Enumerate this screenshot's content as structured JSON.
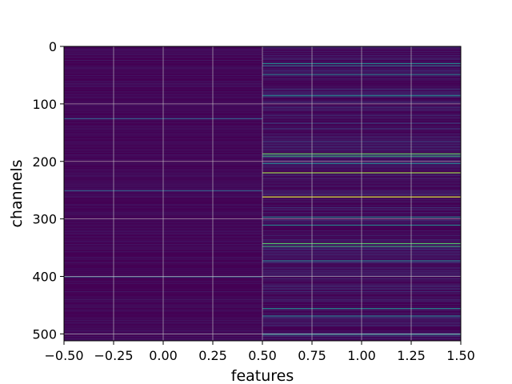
{
  "chart_data": {
    "type": "heatmap",
    "title": "",
    "xlabel": "features",
    "ylabel": "channels",
    "xlim": [
      -0.5,
      1.5
    ],
    "ylim": [
      512,
      0
    ],
    "grid": true,
    "colormap": "viridis",
    "columns": [
      0,
      1
    ],
    "xticks": [
      "−0.50",
      "−0.25",
      "0.00",
      "0.25",
      "0.50",
      "0.75",
      "1.00",
      "1.25",
      "1.50"
    ],
    "xtick_values": [
      -0.5,
      -0.25,
      0,
      0.25,
      0.5,
      0.75,
      1.0,
      1.25,
      1.5
    ],
    "yticks": [
      "0",
      "100",
      "200",
      "300",
      "400",
      "500"
    ],
    "ytick_values": [
      0,
      100,
      200,
      300,
      400,
      500
    ],
    "bright_rows": [
      {
        "channel": 29,
        "column": 1,
        "level": 0.45
      },
      {
        "channel": 33,
        "column": 1,
        "level": 0.35
      },
      {
        "channel": 48,
        "column": 1,
        "level": 0.4
      },
      {
        "channel": 85,
        "column": 1,
        "level": 0.45
      },
      {
        "channel": 125,
        "column": 0,
        "level": 0.3
      },
      {
        "channel": 186,
        "column": 1,
        "level": 0.75
      },
      {
        "channel": 190,
        "column": 1,
        "level": 0.6
      },
      {
        "channel": 203,
        "column": 1,
        "level": 0.4
      },
      {
        "channel": 219,
        "column": 1,
        "level": 0.85
      },
      {
        "channel": 250,
        "column": 0,
        "level": 0.3
      },
      {
        "channel": 261,
        "column": 1,
        "level": 0.95
      },
      {
        "channel": 296,
        "column": 1,
        "level": 0.45
      },
      {
        "channel": 310,
        "column": 1,
        "level": 0.45
      },
      {
        "channel": 342,
        "column": 1,
        "level": 0.7
      },
      {
        "channel": 347,
        "column": 1,
        "level": 0.6
      },
      {
        "channel": 372,
        "column": 1,
        "level": 0.4
      },
      {
        "channel": 400,
        "column": 0,
        "level": 0.3
      },
      {
        "channel": 455,
        "column": 1,
        "level": 0.45
      },
      {
        "channel": 468,
        "column": 1,
        "level": 0.4
      },
      {
        "channel": 500,
        "column": 1,
        "level": 0.45
      }
    ]
  }
}
